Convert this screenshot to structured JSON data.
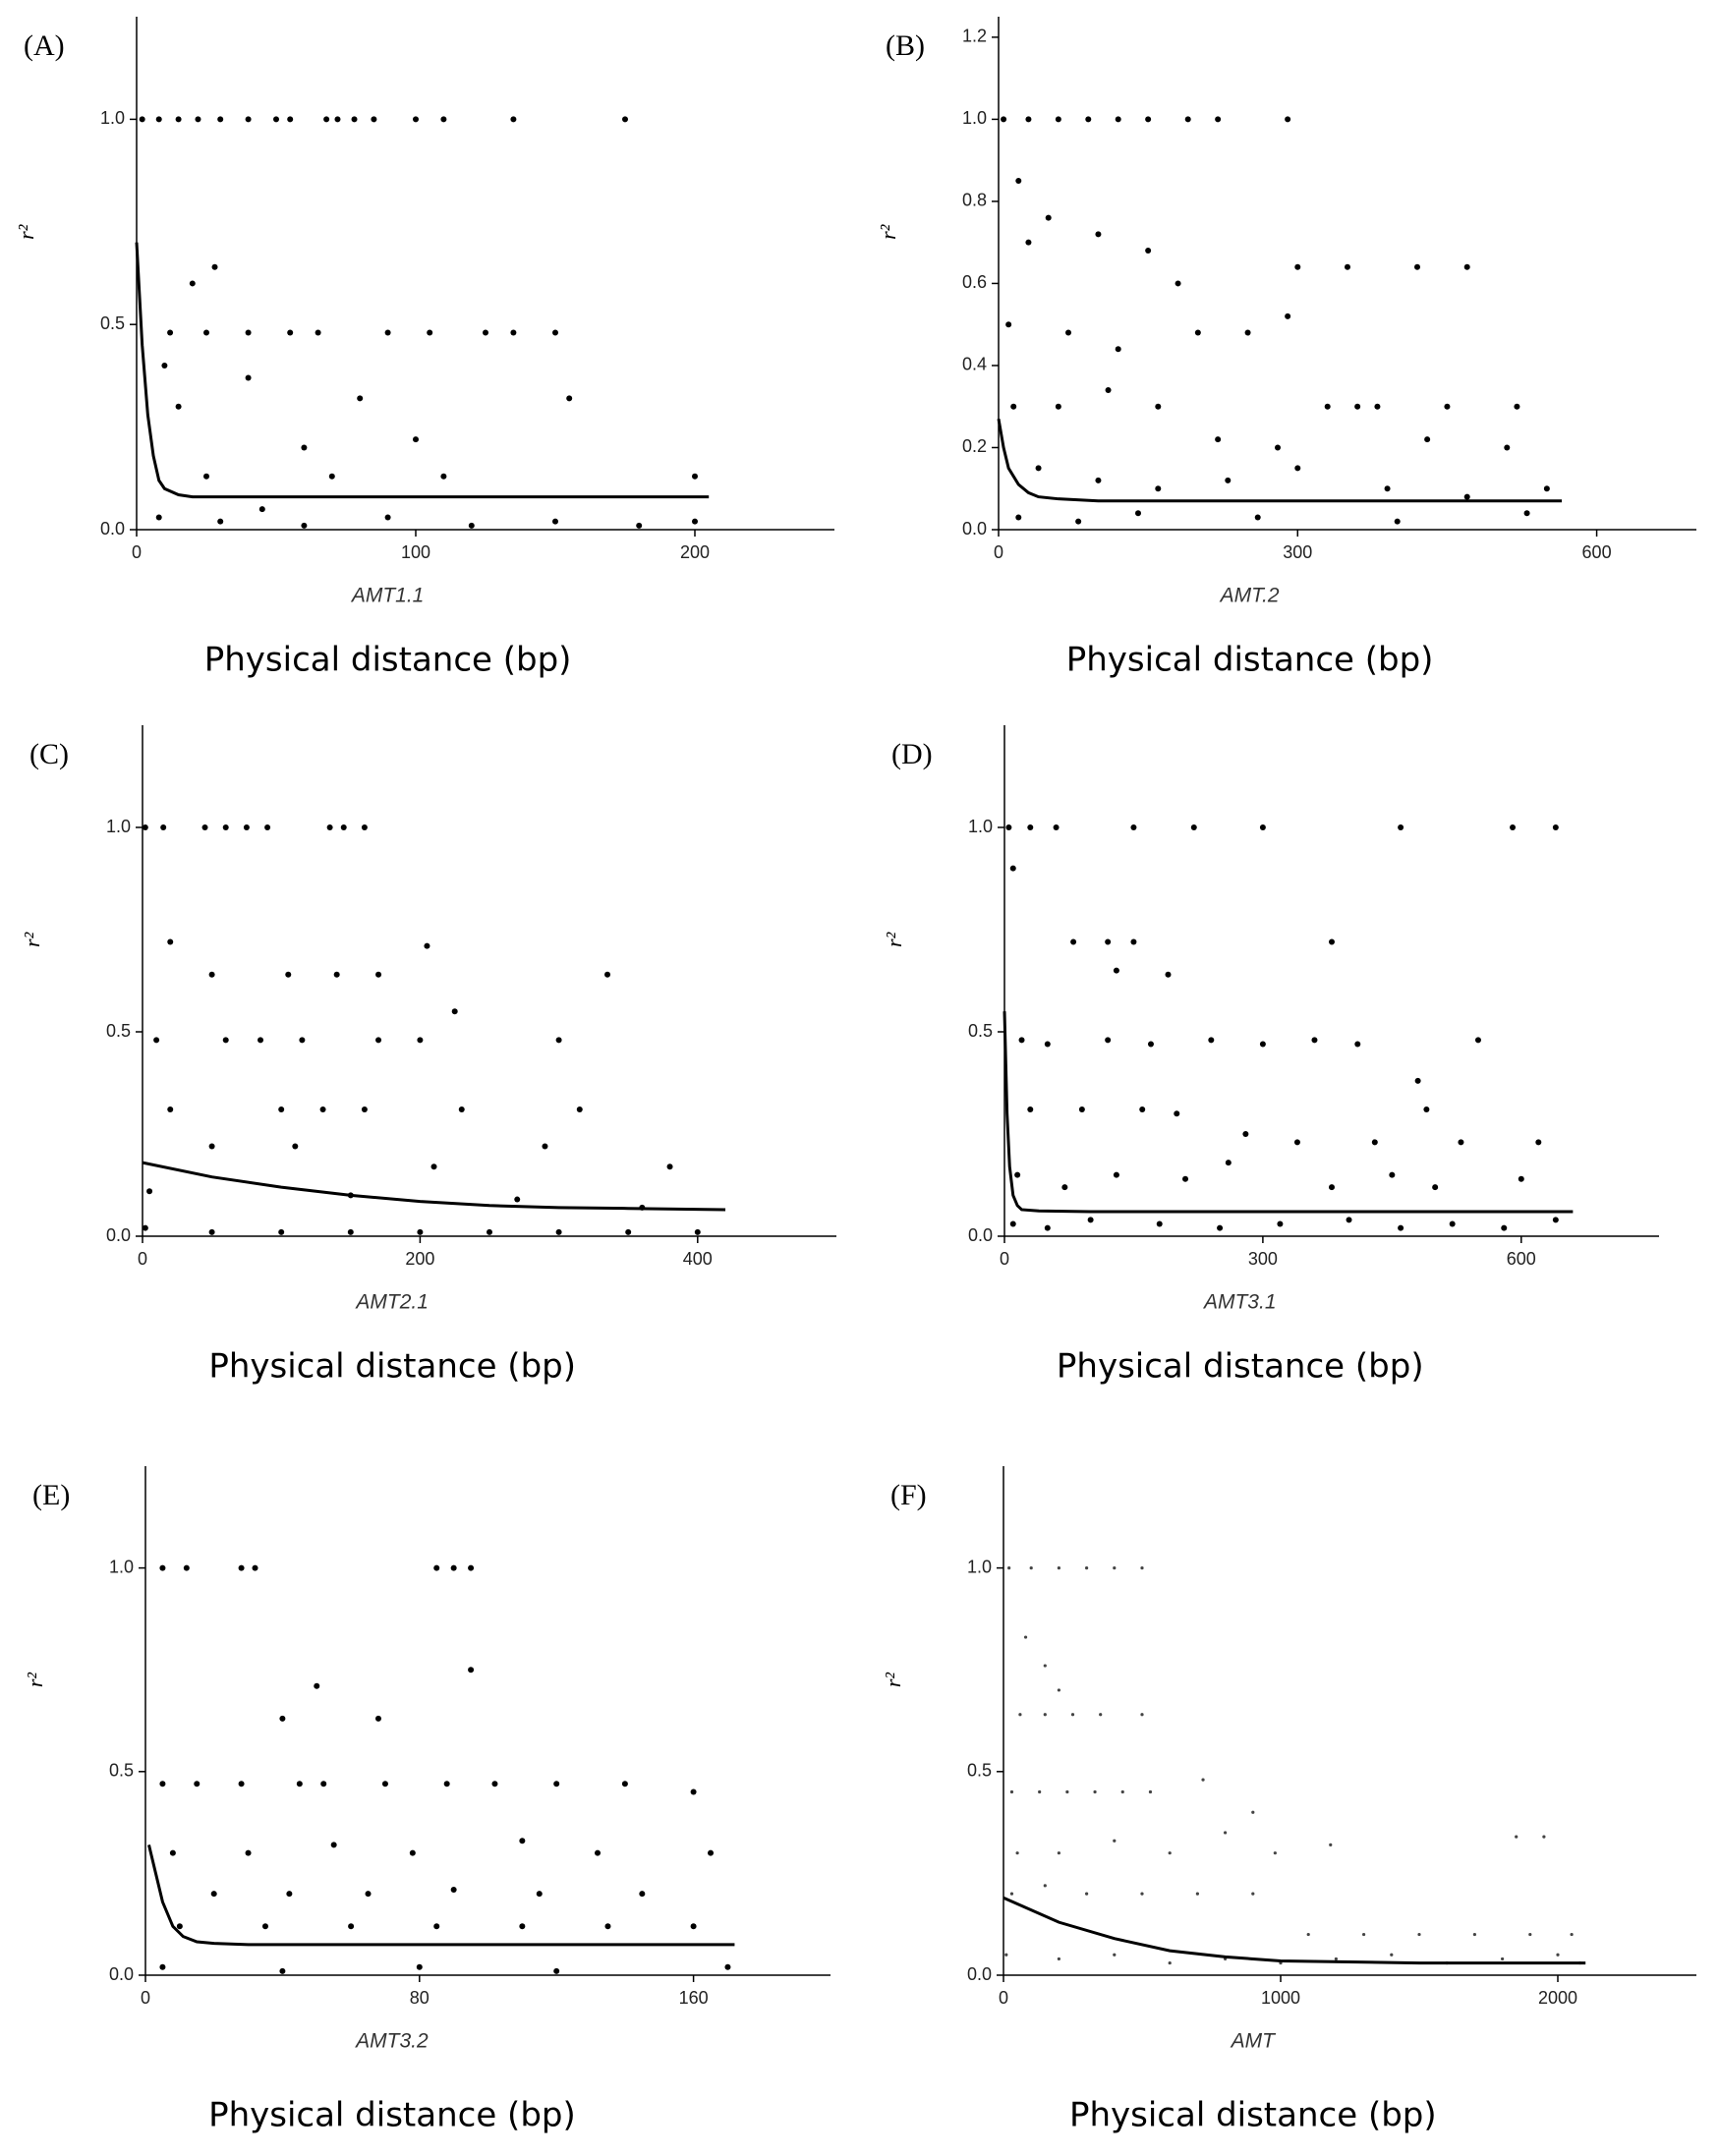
{
  "chart_data": [
    {
      "type": "scatter",
      "label": "(A)",
      "ylabel": "r²",
      "xlabel": "AMT1.1",
      "caption": "Physical distance (bp)",
      "color": "#000000",
      "xlim": [
        0,
        250
      ],
      "xticks": [
        0,
        100,
        200
      ],
      "ylim": [
        0,
        1.25
      ],
      "yticks": [
        {
          "value": 0,
          "label": "0.0"
        },
        0.5,
        {
          "value": 1,
          "label": "1.0"
        }
      ],
      "x": [
        2,
        8,
        15,
        22,
        30,
        40,
        50,
        55,
        68,
        72,
        78,
        85,
        100,
        110,
        135,
        175,
        12,
        25,
        40,
        55,
        65,
        90,
        105,
        125,
        135,
        150,
        28,
        20,
        10,
        40,
        15,
        80,
        155,
        60,
        100,
        25,
        70,
        110,
        200,
        8,
        30,
        60,
        90,
        120,
        150,
        180,
        200,
        45
      ],
      "values": [
        1,
        1,
        1,
        1,
        1,
        1,
        1,
        1,
        1,
        1,
        1,
        1,
        1,
        1,
        1,
        1,
        0.48,
        0.48,
        0.48,
        0.48,
        0.48,
        0.48,
        0.48,
        0.48,
        0.48,
        0.48,
        0.64,
        0.6,
        0.4,
        0.37,
        0.3,
        0.32,
        0.32,
        0.2,
        0.22,
        0.13,
        0.13,
        0.13,
        0.13,
        0.03,
        0.02,
        0.01,
        0.03,
        0.01,
        0.02,
        0.01,
        0.02,
        0.05
      ],
      "fit": {
        "x": [
          0,
          2,
          4,
          6,
          8,
          10,
          15,
          20,
          50,
          100,
          150,
          205
        ],
        "values": [
          0.7,
          0.45,
          0.28,
          0.18,
          0.12,
          0.1,
          0.085,
          0.08,
          0.08,
          0.08,
          0.08,
          0.08
        ]
      }
    },
    {
      "type": "scatter",
      "label": "(B)",
      "ylabel": "r²",
      "xlabel": "AMT.2",
      "caption": "Physical distance (bp)",
      "color": "#000000",
      "xlim": [
        0,
        700
      ],
      "xticks": [
        0,
        300,
        600
      ],
      "ylim": [
        0,
        1.25
      ],
      "yticks": [
        {
          "value": 0,
          "label": "0.0"
        },
        0.2,
        0.4,
        0.6,
        0.8,
        {
          "value": 1,
          "label": "1.0"
        },
        1.2
      ],
      "x": [
        5,
        30,
        60,
        90,
        120,
        150,
        190,
        220,
        290,
        20,
        30,
        50,
        100,
        150,
        180,
        300,
        350,
        420,
        470,
        10,
        70,
        120,
        200,
        250,
        290,
        330,
        380,
        450,
        520,
        15,
        60,
        110,
        160,
        220,
        280,
        360,
        430,
        510,
        40,
        100,
        160,
        230,
        300,
        390,
        470,
        550,
        20,
        80,
        140,
        260,
        400,
        530
      ],
      "values": [
        1,
        1,
        1,
        1,
        1,
        1,
        1,
        1,
        1,
        0.85,
        0.7,
        0.76,
        0.72,
        0.68,
        0.6,
        0.64,
        0.64,
        0.64,
        0.64,
        0.5,
        0.48,
        0.44,
        0.48,
        0.48,
        0.52,
        0.3,
        0.3,
        0.3,
        0.3,
        0.3,
        0.3,
        0.34,
        0.3,
        0.22,
        0.2,
        0.3,
        0.22,
        0.2,
        0.15,
        0.12,
        0.1,
        0.12,
        0.15,
        0.1,
        0.08,
        0.1,
        0.03,
        0.02,
        0.04,
        0.03,
        0.02,
        0.04
      ],
      "fit": {
        "x": [
          0,
          5,
          10,
          20,
          30,
          40,
          60,
          100,
          300,
          565
        ],
        "values": [
          0.27,
          0.2,
          0.15,
          0.11,
          0.09,
          0.08,
          0.075,
          0.07,
          0.07,
          0.07
        ]
      }
    },
    {
      "type": "scatter",
      "label": "(C)",
      "ylabel": "r²",
      "xlabel": "AMT2.1",
      "caption": "Physical distance (bp)",
      "color": "#000000",
      "xlim": [
        0,
        500
      ],
      "xticks": [
        0,
        200,
        400
      ],
      "ylim": [
        0,
        1.25
      ],
      "yticks": [
        {
          "value": 0,
          "label": "0.0"
        },
        0.5,
        {
          "value": 1,
          "label": "1.0"
        }
      ],
      "x": [
        2,
        15,
        45,
        60,
        75,
        90,
        135,
        145,
        160,
        20,
        205,
        335,
        50,
        105,
        140,
        170,
        225,
        10,
        60,
        85,
        115,
        170,
        200,
        300,
        20,
        100,
        130,
        160,
        230,
        315,
        50,
        110,
        210,
        290,
        380,
        5,
        150,
        270,
        360,
        2,
        50,
        100,
        150,
        200,
        250,
        300,
        350,
        400
      ],
      "values": [
        1,
        1,
        1,
        1,
        1,
        1,
        1,
        1,
        1,
        0.72,
        0.71,
        0.64,
        0.64,
        0.64,
        0.64,
        0.64,
        0.55,
        0.48,
        0.48,
        0.48,
        0.48,
        0.48,
        0.48,
        0.48,
        0.31,
        0.31,
        0.31,
        0.31,
        0.31,
        0.31,
        0.22,
        0.22,
        0.17,
        0.22,
        0.17,
        0.11,
        0.1,
        0.09,
        0.07,
        0.02,
        0.01,
        0.01,
        0.01,
        0.01,
        0.01,
        0.01,
        0.01,
        0.01
      ],
      "fit": {
        "x": [
          0,
          50,
          100,
          150,
          200,
          250,
          300,
          350,
          420
        ],
        "values": [
          0.18,
          0.145,
          0.12,
          0.1,
          0.085,
          0.075,
          0.07,
          0.068,
          0.065
        ]
      }
    },
    {
      "type": "scatter",
      "label": "(D)",
      "ylabel": "r²",
      "xlabel": "AMT3.1",
      "caption": "Physical distance (bp)",
      "color": "#000000",
      "xlim": [
        0,
        760
      ],
      "xticks": [
        0,
        300,
        600
      ],
      "ylim": [
        0,
        1.25
      ],
      "yticks": [
        {
          "value": 0,
          "label": "0.0"
        },
        0.5,
        {
          "value": 1,
          "label": "1.0"
        }
      ],
      "x": [
        5,
        30,
        60,
        150,
        220,
        300,
        460,
        590,
        640,
        10,
        80,
        120,
        150,
        380,
        130,
        190,
        20,
        50,
        120,
        170,
        240,
        300,
        360,
        410,
        480,
        550,
        30,
        90,
        160,
        200,
        280,
        340,
        430,
        490,
        530,
        620,
        15,
        70,
        130,
        210,
        260,
        380,
        450,
        500,
        600,
        10,
        50,
        100,
        180,
        250,
        320,
        400,
        460,
        520,
        580,
        640
      ],
      "values": [
        1,
        1,
        1,
        1,
        1,
        1,
        1,
        1,
        1,
        0.9,
        0.72,
        0.72,
        0.72,
        0.72,
        0.65,
        0.64,
        0.48,
        0.47,
        0.48,
        0.47,
        0.48,
        0.47,
        0.48,
        0.47,
        0.38,
        0.48,
        0.31,
        0.31,
        0.31,
        0.3,
        0.25,
        0.23,
        0.23,
        0.31,
        0.23,
        0.23,
        0.15,
        0.12,
        0.15,
        0.14,
        0.18,
        0.12,
        0.15,
        0.12,
        0.14,
        0.03,
        0.02,
        0.04,
        0.03,
        0.02,
        0.03,
        0.04,
        0.02,
        0.03,
        0.02,
        0.04
      ],
      "fit": {
        "x": [
          0,
          3,
          6,
          10,
          15,
          20,
          40,
          100,
          660
        ],
        "values": [
          0.55,
          0.3,
          0.17,
          0.1,
          0.075,
          0.065,
          0.062,
          0.06,
          0.06
        ]
      }
    },
    {
      "type": "scatter",
      "label": "(E)",
      "ylabel": "r²",
      "xlabel": "AMT3.2",
      "caption": "Physical distance (bp)",
      "color": "#000000",
      "xlim": [
        0,
        200
      ],
      "xticks": [
        0,
        80,
        160
      ],
      "ylim": [
        0,
        1.25
      ],
      "yticks": [
        {
          "value": 0,
          "label": "0.0"
        },
        0.5,
        {
          "value": 1,
          "label": "1.0"
        }
      ],
      "x": [
        5,
        12,
        28,
        32,
        85,
        90,
        95,
        95,
        50,
        40,
        68,
        5,
        15,
        28,
        45,
        52,
        70,
        88,
        102,
        120,
        140,
        160,
        8,
        30,
        55,
        78,
        110,
        132,
        165,
        20,
        42,
        65,
        90,
        115,
        145,
        10,
        35,
        60,
        85,
        110,
        135,
        160,
        5,
        40,
        80,
        120,
        170
      ],
      "values": [
        1,
        1,
        1,
        1,
        1,
        1,
        1,
        0.75,
        0.71,
        0.63,
        0.63,
        0.47,
        0.47,
        0.47,
        0.47,
        0.47,
        0.47,
        0.47,
        0.47,
        0.47,
        0.47,
        0.45,
        0.3,
        0.3,
        0.32,
        0.3,
        0.33,
        0.3,
        0.3,
        0.2,
        0.2,
        0.2,
        0.21,
        0.2,
        0.2,
        0.12,
        0.12,
        0.12,
        0.12,
        0.12,
        0.12,
        0.12,
        0.02,
        0.01,
        0.02,
        0.01,
        0.02
      ],
      "fit": {
        "x": [
          1,
          3,
          5,
          8,
          11,
          15,
          20,
          30,
          80,
          172
        ],
        "values": [
          0.32,
          0.25,
          0.18,
          0.12,
          0.095,
          0.082,
          0.078,
          0.075,
          0.075,
          0.075
        ]
      }
    },
    {
      "type": "scatter",
      "label": "(F)",
      "ylabel": "r²",
      "xlabel": "AMT",
      "caption": "Physical distance (bp)",
      "color": "#444444",
      "xlim": [
        0,
        2500
      ],
      "xticks": [
        0,
        1000,
        2000
      ],
      "ylim": [
        0,
        1.25
      ],
      "yticks": [
        {
          "value": 0,
          "label": "0.0"
        },
        0.5,
        {
          "value": 1,
          "label": "1.0"
        }
      ],
      "x": [
        20,
        100,
        200,
        300,
        400,
        500,
        80,
        150,
        200,
        60,
        150,
        250,
        350,
        500,
        30,
        130,
        230,
        330,
        430,
        530,
        720,
        900,
        50,
        200,
        400,
        600,
        800,
        980,
        1180,
        1850,
        1950,
        30,
        150,
        300,
        500,
        700,
        900,
        1100,
        1300,
        1500,
        1700,
        1900,
        2050,
        10,
        200,
        400,
        600,
        800,
        1000,
        1200,
        1400,
        1600,
        1800,
        2000,
        2080
      ],
      "values": [
        1,
        1,
        1,
        1,
        1,
        1,
        0.83,
        0.76,
        0.7,
        0.64,
        0.64,
        0.64,
        0.64,
        0.64,
        0.45,
        0.45,
        0.45,
        0.45,
        0.45,
        0.45,
        0.48,
        0.4,
        0.3,
        0.3,
        0.33,
        0.3,
        0.35,
        0.3,
        0.32,
        0.34,
        0.34,
        0.2,
        0.22,
        0.2,
        0.2,
        0.2,
        0.2,
        0.1,
        0.1,
        0.1,
        0.1,
        0.1,
        0.1,
        0.05,
        0.04,
        0.05,
        0.03,
        0.04,
        0.03,
        0.04,
        0.05,
        0.03,
        0.04,
        0.05,
        0.03
      ],
      "fit": {
        "x": [
          0,
          200,
          400,
          600,
          800,
          1000,
          1500,
          2100
        ],
        "values": [
          0.19,
          0.13,
          0.09,
          0.06,
          0.045,
          0.035,
          0.03,
          0.03
        ]
      }
    }
  ]
}
